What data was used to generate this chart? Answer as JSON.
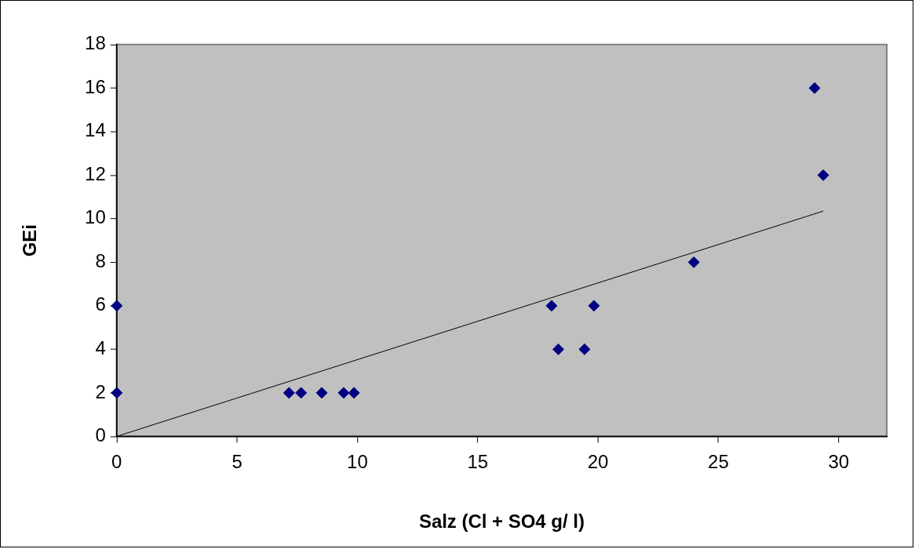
{
  "chart_data": {
    "type": "scatter",
    "xlabel": "Salz (Cl + SO4 g/ l)",
    "ylabel": "GEi",
    "marker": "diamond",
    "xlim": [
      0,
      32
    ],
    "ylim": [
      0,
      18
    ],
    "xticks": [
      0,
      5,
      10,
      15,
      20,
      25,
      30
    ],
    "yticks": [
      0,
      2,
      4,
      6,
      8,
      10,
      12,
      14,
      16,
      18
    ],
    "series": [
      {
        "color": "#000080",
        "x": [
          0,
          0,
          7.16,
          7.66,
          8.52,
          9.43,
          9.86,
          18.07,
          18.35,
          19.44,
          19.83,
          23.98,
          29.0,
          29.36
        ],
        "values": [
          2,
          6,
          2,
          2,
          2,
          2,
          2,
          6,
          4,
          4,
          6,
          8,
          16,
          12
        ]
      },
      {
        "type": "line",
        "color": "#000000",
        "marker": "none",
        "x": [
          0,
          29.36
        ],
        "values": [
          0,
          10.35
        ]
      }
    ]
  }
}
